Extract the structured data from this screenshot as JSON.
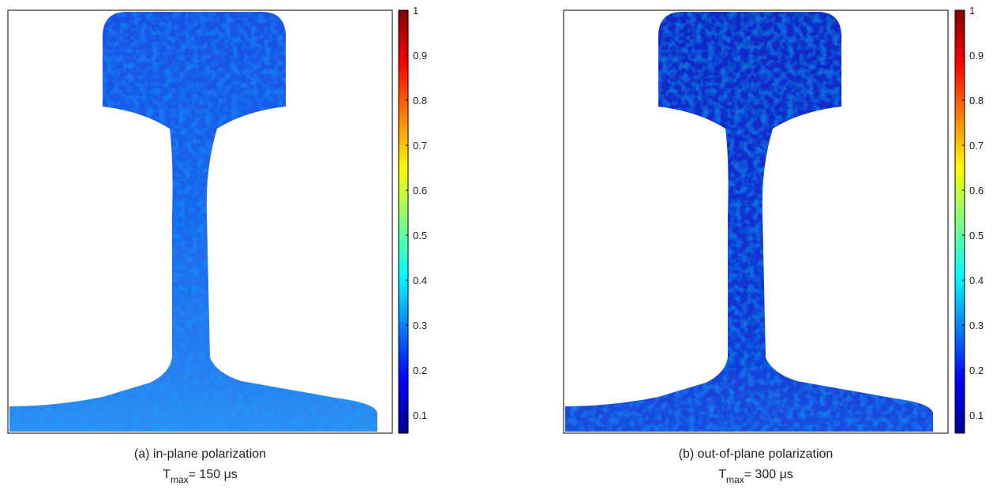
{
  "chart_data": [
    {
      "type": "heatmap",
      "caption": "(a) in-plane polarization",
      "t_max_label": {
        "base": "T",
        "sub": "max",
        "rest": "= 150 μs"
      },
      "colormap": "jet",
      "clim": [
        0.06,
        1
      ],
      "cticks": [
        0.1,
        0.2,
        0.3,
        0.4,
        0.5,
        0.6,
        0.7,
        0.8,
        0.9,
        1
      ]
    },
    {
      "type": "heatmap",
      "caption": "(b) out-of-plane polarization",
      "t_max_label": {
        "base": "T",
        "sub": "max",
        "rest": "= 300 μs"
      },
      "colormap": "jet",
      "clim": [
        0.06,
        1
      ],
      "cticks": [
        0.1,
        0.2,
        0.3,
        0.4,
        0.5,
        0.6,
        0.7,
        0.8,
        0.9,
        1
      ]
    }
  ]
}
